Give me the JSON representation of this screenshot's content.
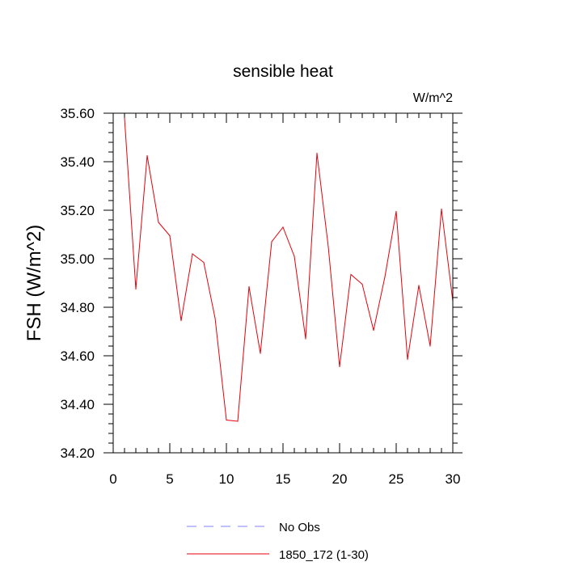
{
  "chart_data": {
    "type": "line",
    "title": "sensible heat",
    "units_label": "W/m^2",
    "ylabel": "FSH  (W/m^2)",
    "xlabel": "",
    "xlim": [
      0,
      30
    ],
    "ylim": [
      34.2,
      35.6
    ],
    "x_ticks": [
      0,
      5,
      10,
      15,
      20,
      25,
      30
    ],
    "x_tick_labels": [
      "0",
      "5",
      "10",
      "15",
      "20",
      "25",
      "30"
    ],
    "y_ticks": [
      34.2,
      34.4,
      34.6,
      34.8,
      35.0,
      35.2,
      35.4,
      35.6
    ],
    "y_tick_labels": [
      "34.20",
      "34.40",
      "34.60",
      "34.80",
      "35.00",
      "35.20",
      "35.40",
      "35.60"
    ],
    "grid": false,
    "legend_position": "bottom",
    "series": [
      {
        "name": "1850_172 (1-30)",
        "color": "#e8000b",
        "style": "solid",
        "x": [
          1,
          2,
          3,
          4,
          5,
          6,
          7,
          8,
          9,
          10,
          11,
          12,
          13,
          14,
          15,
          16,
          17,
          18,
          19,
          20,
          21,
          22,
          23,
          24,
          25,
          26,
          27,
          28,
          29,
          30
        ],
        "values": [
          35.58,
          34.875,
          35.425,
          35.15,
          35.095,
          34.745,
          35.02,
          34.985,
          34.755,
          34.335,
          34.33,
          34.885,
          34.61,
          35.07,
          35.13,
          35.01,
          34.67,
          35.435,
          35.05,
          34.555,
          34.935,
          34.895,
          34.705,
          34.925,
          35.195,
          34.585,
          34.89,
          34.64,
          35.205,
          34.825
        ]
      }
    ],
    "legend": [
      {
        "label": "No Obs",
        "color": "#8080ff",
        "style": "dashed"
      },
      {
        "label": "1850_172 (1-30)",
        "color": "#e8000b",
        "style": "solid"
      }
    ]
  }
}
